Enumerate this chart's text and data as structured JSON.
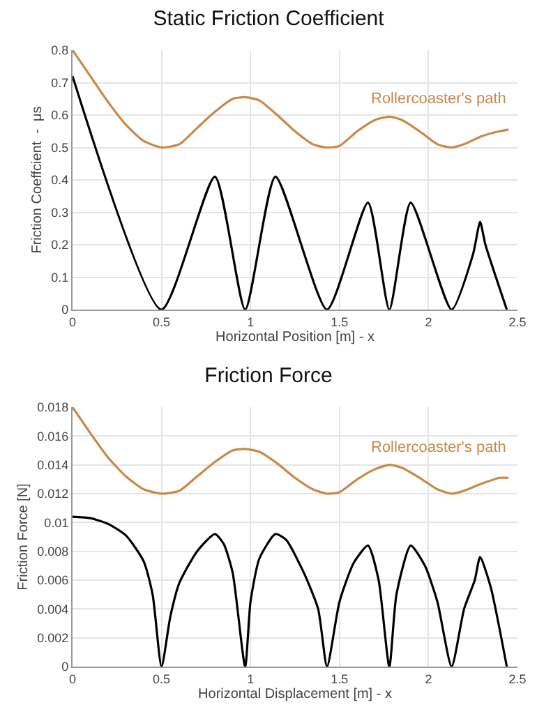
{
  "chart_data": [
    {
      "type": "line",
      "title": "Static Friction Coefficient",
      "xlabel": "Horizontal Position [m] - x",
      "ylabel": "Friction Coeffcient  -  μs",
      "xlim": [
        0,
        2.5
      ],
      "xticks": [
        0,
        0.5,
        1,
        1.5,
        2,
        2.5
      ],
      "ylim": [
        0,
        0.8
      ],
      "yticks": [
        0,
        0.1,
        0.2,
        0.3,
        0.4,
        0.5,
        0.6,
        0.7,
        0.8
      ],
      "grid": true,
      "legend": false,
      "series": [
        {
          "name": "Rollercoaster's path",
          "color": "#c8884a",
          "x": [
            0,
            0.1,
            0.2,
            0.3,
            0.4,
            0.5,
            0.6,
            0.7,
            0.8,
            0.9,
            0.97,
            1.05,
            1.15,
            1.25,
            1.35,
            1.43,
            1.5,
            1.6,
            1.7,
            1.78,
            1.85,
            1.95,
            2.05,
            2.13,
            2.2,
            2.3,
            2.4,
            2.45
          ],
          "values": [
            0.8,
            0.72,
            0.64,
            0.57,
            0.52,
            0.5,
            0.51,
            0.56,
            0.61,
            0.65,
            0.655,
            0.645,
            0.6,
            0.55,
            0.51,
            0.5,
            0.505,
            0.55,
            0.585,
            0.595,
            0.585,
            0.55,
            0.51,
            0.5,
            0.51,
            0.535,
            0.55,
            0.555
          ]
        },
        {
          "color": "#000000",
          "x": [
            0,
            0.5,
            0.8,
            0.97,
            1.14,
            1.43,
            1.66,
            1.78,
            1.9,
            2.13,
            2.25,
            2.29,
            2.32,
            2.44
          ],
          "values": [
            0.72,
            0,
            0.41,
            0,
            0.41,
            0,
            0.33,
            0,
            0.33,
            0,
            0.17,
            0.27,
            0.2,
            0
          ]
        }
      ]
    },
    {
      "type": "line",
      "title": "Friction Force",
      "xlabel": "Horizontal Displacement [m] - x",
      "ylabel": "Friction Force [N]",
      "xlim": [
        0,
        2.5
      ],
      "xticks": [
        0,
        0.5,
        1,
        1.5,
        2,
        2.5
      ],
      "ylim": [
        0,
        0.018
      ],
      "yticks": [
        0,
        0.002,
        0.004,
        0.006,
        0.008,
        0.01,
        0.012,
        0.014,
        0.016,
        0.018
      ],
      "grid": true,
      "legend": false,
      "series": [
        {
          "name": "Rollercoaster's path",
          "color": "#c8884a",
          "x": [
            0,
            0.1,
            0.2,
            0.3,
            0.4,
            0.5,
            0.6,
            0.7,
            0.8,
            0.9,
            0.97,
            1.05,
            1.15,
            1.25,
            1.35,
            1.43,
            1.5,
            1.6,
            1.7,
            1.78,
            1.85,
            1.95,
            2.05,
            2.13,
            2.2,
            2.3,
            2.4,
            2.45
          ],
          "values": [
            0.018,
            0.0162,
            0.0145,
            0.0132,
            0.0123,
            0.012,
            0.0122,
            0.0132,
            0.0142,
            0.015,
            0.0151,
            0.0149,
            0.0141,
            0.0131,
            0.0123,
            0.012,
            0.0121,
            0.013,
            0.0137,
            0.014,
            0.0138,
            0.0131,
            0.0123,
            0.012,
            0.0122,
            0.0127,
            0.0131,
            0.0131
          ]
        },
        {
          "color": "#000000",
          "x": [
            0,
            0.1,
            0.2,
            0.3,
            0.4,
            0.45,
            0.5,
            0.55,
            0.6,
            0.7,
            0.8,
            0.85,
            0.9,
            0.97,
            1.0,
            1.05,
            1.14,
            1.2,
            1.3,
            1.38,
            1.43,
            1.5,
            1.58,
            1.66,
            1.72,
            1.78,
            1.82,
            1.9,
            1.98,
            2.05,
            2.13,
            2.2,
            2.26,
            2.29,
            2.35,
            2.44
          ],
          "values": [
            0.0104,
            0.0103,
            0.0099,
            0.0091,
            0.0073,
            0.005,
            0,
            0.0035,
            0.0058,
            0.008,
            0.0092,
            0.0085,
            0.0065,
            0,
            0.0045,
            0.0075,
            0.0092,
            0.0088,
            0.0065,
            0.004,
            0,
            0.0045,
            0.0072,
            0.0084,
            0.006,
            0,
            0.005,
            0.0084,
            0.007,
            0.0045,
            0,
            0.004,
            0.006,
            0.0076,
            0.0055,
            0
          ]
        }
      ]
    }
  ]
}
